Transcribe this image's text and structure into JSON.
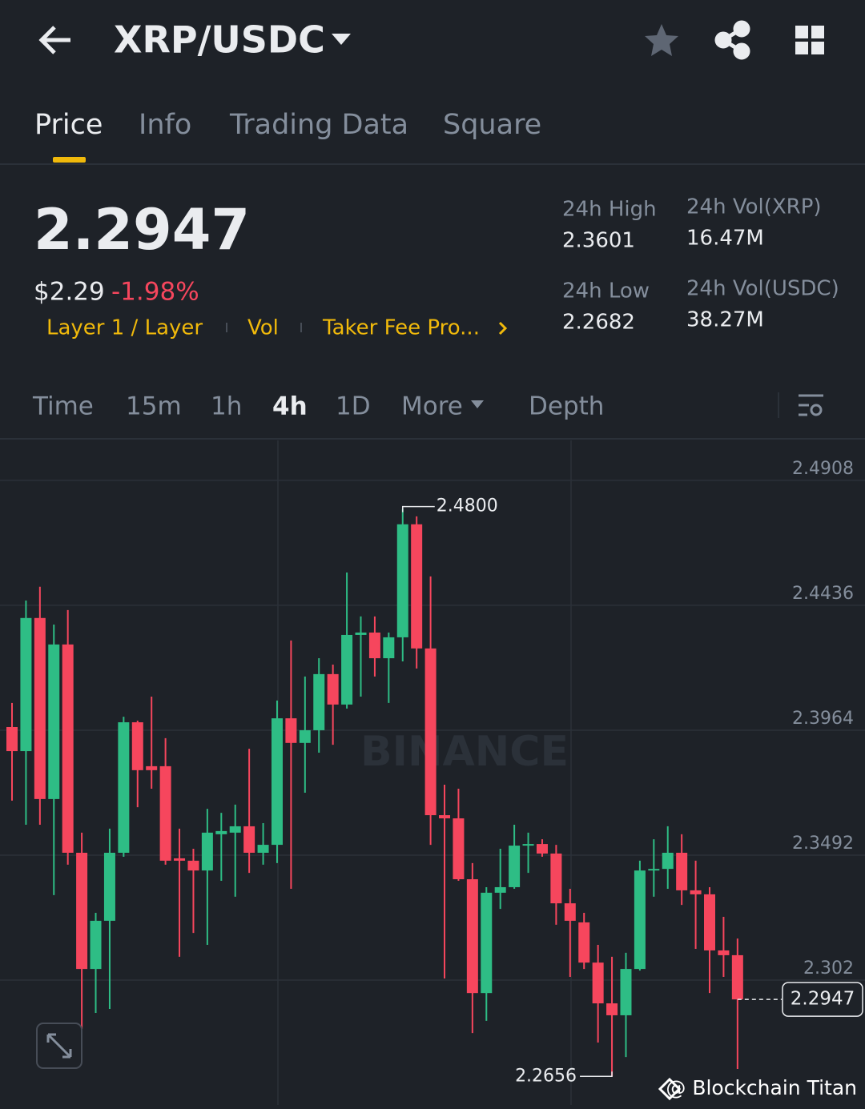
{
  "header": {
    "pair": "XRP/USDC"
  },
  "tabs": [
    "Price",
    "Info",
    "Trading Data",
    "Square"
  ],
  "ticker": {
    "price": "2.2947",
    "fiat": "$2.29",
    "change": "-1.98%",
    "tags": [
      "Layer 1 / Layer",
      "Vol",
      "Taker Fee Pro..."
    ]
  },
  "stats": [
    {
      "label": "24h High",
      "value": "2.3601"
    },
    {
      "label": "24h Vol(XRP)",
      "value": "16.47M"
    },
    {
      "label": "24h Low",
      "value": "2.2682"
    },
    {
      "label": "24h Vol(USDC)",
      "value": "38.27M"
    }
  ],
  "intervals": [
    "Time",
    "15m",
    "1h",
    "4h",
    "1D",
    "More",
    "Depth"
  ],
  "chart_data": {
    "type": "candlestick",
    "watermark": "BINANCE",
    "up_color": "#2ebd85",
    "down_color": "#f6465d",
    "ylim": [
      2.2548,
      2.5059
    ],
    "yticks": [
      2.4908,
      2.4436,
      2.3964,
      2.3492,
      2.302
    ],
    "grid": true,
    "series": {
      "open": [
        2.3976,
        2.3885,
        2.4388,
        2.3704,
        2.4288,
        2.3501,
        2.3062,
        2.3244,
        2.3501,
        2.3994,
        2.3828,
        2.3828,
        2.348,
        2.3471,
        2.3434,
        2.3571,
        2.3577,
        2.3601,
        2.3501,
        2.3531,
        2.4009,
        2.3916,
        2.3964,
        2.4176,
        2.4061,
        2.4324,
        2.4333,
        2.4236,
        2.4315,
        2.4742,
        2.4273,
        2.3643,
        2.3631,
        2.3401,
        2.2971,
        2.335,
        2.3371,
        2.3528,
        2.3534,
        2.3498,
        2.331,
        2.3238,
        2.3086,
        2.2932,
        2.2887,
        2.3062,
        2.3434,
        2.344,
        2.3501,
        2.3359,
        2.3344,
        2.3132,
        2.3114
      ],
      "high": [
        2.4067,
        2.4454,
        2.4506,
        2.4363,
        2.4418,
        2.3577,
        2.3274,
        2.3592,
        2.4015,
        2.4,
        2.4091,
        2.3934,
        2.3592,
        2.3516,
        2.3667,
        2.3652,
        2.3683,
        2.3894,
        2.3613,
        2.4076,
        2.4303,
        2.4167,
        2.4236,
        2.4212,
        2.456,
        2.4394,
        2.4394,
        2.4333,
        2.48,
        2.4772,
        2.4545,
        2.3758,
        2.3743,
        2.3462,
        2.3371,
        2.3516,
        2.3607,
        2.3577,
        2.3552,
        2.3531,
        2.3365,
        2.3274,
        2.3153,
        2.3108,
        2.3123,
        2.3471,
        2.3552,
        2.3601,
        2.3571,
        2.3471,
        2.3371,
        2.3259,
        2.3177
      ],
      "low": [
        2.3698,
        2.3607,
        2.3607,
        2.3341,
        2.3456,
        2.2835,
        2.2896,
        2.2911,
        2.3486,
        2.3673,
        2.3743,
        2.3456,
        2.3108,
        2.3198,
        2.3153,
        2.3395,
        2.3335,
        2.3425,
        2.3456,
        2.3462,
        2.3365,
        2.3728,
        2.3879,
        2.3909,
        2.4046,
        2.4091,
        2.4167,
        2.4067,
        2.4224,
        2.4197,
        2.3531,
        2.3026,
        2.3395,
        2.282,
        2.2866,
        2.3289,
        2.3365,
        2.3425,
        2.3486,
        2.3229,
        2.3032,
        2.3062,
        2.2784,
        2.2656,
        2.2729,
        2.3056,
        2.3335,
        2.3365,
        2.3304,
        2.3138,
        2.2971,
        2.3032,
        2.2684
      ],
      "close": [
        2.3885,
        2.4388,
        2.3704,
        2.4288,
        2.3501,
        2.3062,
        2.3244,
        2.3501,
        2.3994,
        2.3813,
        2.3813,
        2.3471,
        2.3471,
        2.3434,
        2.3577,
        2.3583,
        2.3601,
        2.3501,
        2.3531,
        2.4009,
        2.3916,
        2.3964,
        2.4176,
        2.4061,
        2.4324,
        2.4333,
        2.4236,
        2.4315,
        2.4742,
        2.4273,
        2.3643,
        2.3631,
        2.3401,
        2.2971,
        2.335,
        2.3371,
        2.3528,
        2.3534,
        2.3498,
        2.331,
        2.3244,
        2.3086,
        2.2932,
        2.2887,
        2.3062,
        2.3434,
        2.344,
        2.3501,
        2.3359,
        2.3344,
        2.3132,
        2.3114,
        2.2947
      ]
    },
    "annotations": [
      {
        "value": 2.48,
        "label": "2.4800"
      },
      {
        "value": 2.2656,
        "label": "2.2656"
      },
      {
        "value": 2.2947,
        "label": "2.2947"
      }
    ]
  },
  "credit": "@ Blockchain Titan"
}
